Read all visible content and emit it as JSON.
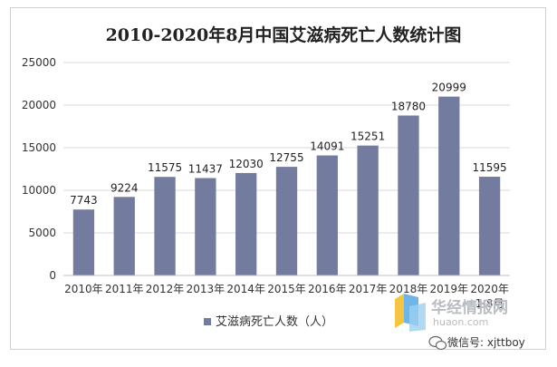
{
  "chart_data": {
    "type": "bar",
    "title": "2010-2020年8月中国艾滋病死亡人数统计图",
    "categories": [
      "2010年",
      "2011年",
      "2012年",
      "2013年",
      "2014年",
      "2015年",
      "2016年",
      "2017年",
      "2018年",
      "2019年",
      "2020年1-8月"
    ],
    "series": [
      {
        "name": "艾滋病死亡人数（人）",
        "values": [
          7743,
          9224,
          11575,
          11437,
          12030,
          12755,
          14091,
          15251,
          18780,
          20999,
          11595
        ],
        "color": "#737c9f"
      }
    ],
    "ylim": [
      0,
      25000
    ],
    "yticks": [
      0,
      5000,
      10000,
      15000,
      20000,
      25000
    ],
    "grid": true,
    "legend": "bottom"
  },
  "watermark": {
    "brand": "华经情报网",
    "domain": "huaon.com"
  },
  "wechat_credit": "微信号: xjttboy",
  "colors": {
    "bar": "#737c9f",
    "grid": "#d9d9d9",
    "axis": "#bfbfbf"
  }
}
